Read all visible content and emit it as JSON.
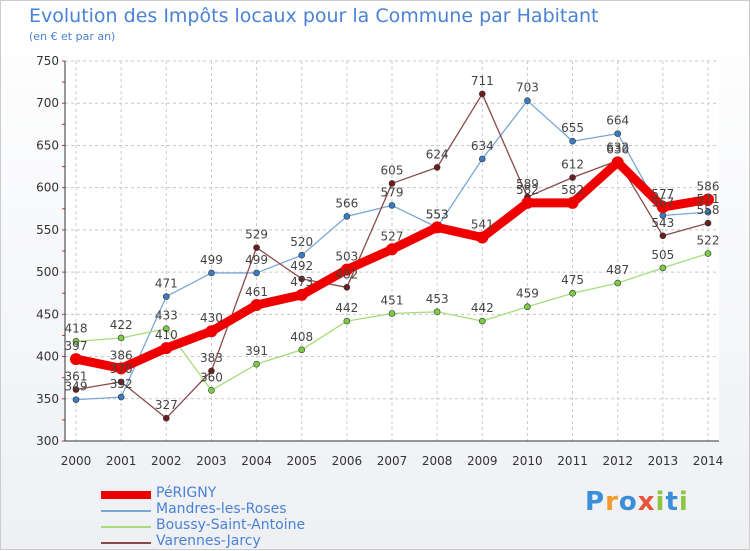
{
  "title": "Evolution des Impôts locaux pour la Commune par Habitant",
  "subtitle": "(en € et par an)",
  "logo": {
    "text": "Proxiti",
    "letters": [
      {
        "ch": "P",
        "color": "#3a8fd8"
      },
      {
        "ch": "r",
        "color": "#f29a2e"
      },
      {
        "ch": "o",
        "color": "#3a8fd8"
      },
      {
        "ch": "x",
        "color": "#e8533a"
      },
      {
        "ch": "i",
        "color": "#8cc63f"
      },
      {
        "ch": "t",
        "color": "#3a8fd8"
      },
      {
        "ch": "i",
        "color": "#8cc63f"
      }
    ]
  },
  "chart_data": {
    "type": "line",
    "x": [
      "2000",
      "2001",
      "2002",
      "2003",
      "2004",
      "2005",
      "2006",
      "2007",
      "2008",
      "2009",
      "2010",
      "2011",
      "2012",
      "2013",
      "2014"
    ],
    "ylim": [
      300,
      750
    ],
    "yticks": [
      300,
      350,
      400,
      450,
      500,
      550,
      600,
      650,
      700,
      750
    ],
    "grid": true,
    "legend_position": "bottom-left",
    "series": [
      {
        "name": "Mandres-les-Roses",
        "color": "#7aa7d6",
        "marker": "#3a7cc4",
        "width": 1.3,
        "values": [
          349,
          352,
          471,
          499,
          499,
          520,
          566,
          579,
          553,
          634,
          703,
          655,
          664,
          567,
          571
        ]
      },
      {
        "name": "Boussy-Saint-Antoine",
        "color": "#a6dd7a",
        "marker": "#7ccc44",
        "width": 1.3,
        "values": [
          418,
          422,
          433,
          360,
          391,
          408,
          442,
          451,
          453,
          442,
          459,
          475,
          487,
          505,
          522
        ]
      },
      {
        "name": "Varennes-Jarcy",
        "color": "#8a4a4a",
        "marker": "#6a1e1e",
        "width": 1.3,
        "values": [
          361,
          370,
          327,
          383,
          529,
          492,
          482,
          605,
          624,
          711,
          589,
          612,
          632,
          543,
          558
        ]
      },
      {
        "name": "PéRIGNY",
        "color": "#ee0000",
        "marker": "#ee0000",
        "width": 9,
        "values": [
          397,
          386,
          410,
          430,
          461,
          473,
          503,
          527,
          553,
          541,
          582,
          582,
          630,
          577,
          586
        ]
      }
    ],
    "labels": [
      {
        "series": "Mandres-les-Roses",
        "values": [
          "349",
          "352",
          "471",
          "499",
          "499",
          "520",
          "566",
          "579",
          "553",
          "634",
          "703",
          "655",
          "664",
          "567",
          "571"
        ]
      },
      {
        "series": "Boussy-Saint-Antoine",
        "values": [
          "418",
          "422",
          "433",
          "360",
          "391",
          "408",
          "442",
          "451",
          "453",
          "442",
          "459",
          "475",
          "487",
          "505",
          "522"
        ]
      },
      {
        "series": "Varennes-Jarcy",
        "values": [
          "361",
          "370",
          "327",
          "383",
          "529",
          "492",
          "482",
          "605",
          "624",
          "711",
          "589",
          "612",
          "632",
          "543",
          "558"
        ]
      },
      {
        "series": "PéRIGNY",
        "values": [
          "397",
          "386",
          "410",
          "430",
          "461",
          "473",
          "503",
          "527",
          "553",
          "541",
          "582",
          "582",
          "630",
          "577",
          "586"
        ]
      }
    ]
  },
  "legend": [
    {
      "name": "PéRIGNY",
      "color": "#ee0000",
      "thick": true
    },
    {
      "name": "Mandres-les-Roses",
      "color": "#7aa7d6",
      "thick": false
    },
    {
      "name": "Boussy-Saint-Antoine",
      "color": "#a6dd7a",
      "thick": false
    },
    {
      "name": "Varennes-Jarcy",
      "color": "#8a4a4a",
      "thick": false
    }
  ]
}
